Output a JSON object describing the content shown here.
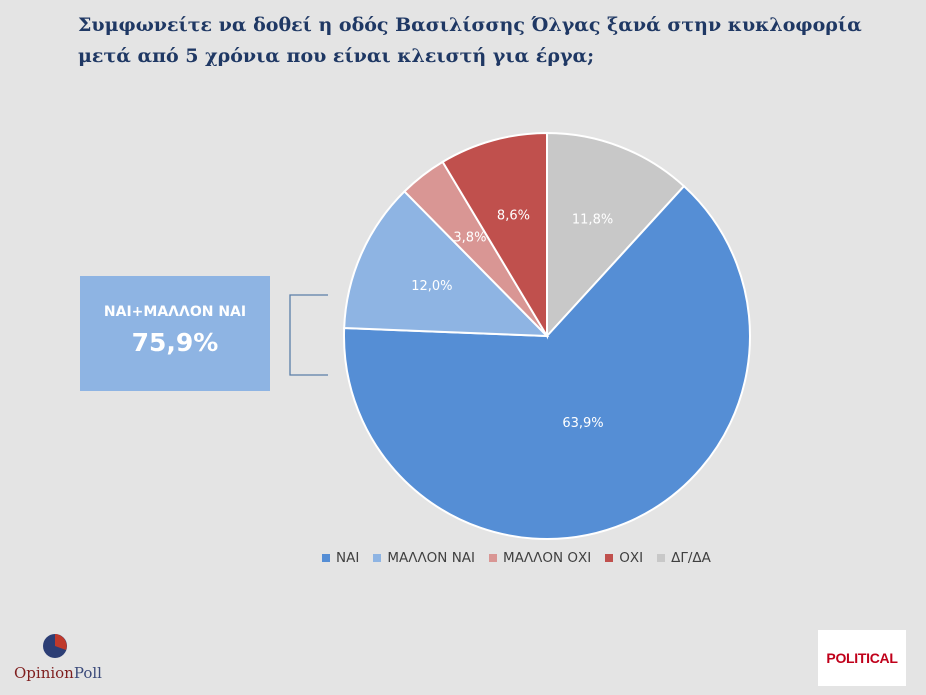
{
  "title": "Συμφωνείτε να δοθεί η οδός Βασιλίσσης Όλγας ξανά στην κυκλοφορία μετά από 5 χρόνια που είναι κλειστή για έργα;",
  "summary": {
    "label": "ΝΑΙ+ΜΑΛΛΟΝ ΝΑΙ",
    "value": "75,9%"
  },
  "chart_data": {
    "type": "pie",
    "title": "Συμφωνείτε να δοθεί η οδός Βασιλίσσης Όλγας ξανά στην κυκλοφορία μετά από 5 χρόνια που είναι κλειστή για έργα;",
    "legend_position": "bottom",
    "start_angle_deg": 0,
    "direction": "clockwise-from-top",
    "slices": [
      {
        "category": "ΔΓ/ΔΑ",
        "value": 11.8,
        "label": "11,8%",
        "color": "#c8c8c8"
      },
      {
        "category": "ΝΑΙ",
        "value": 63.9,
        "label": "63,9%",
        "color": "#558ed5"
      },
      {
        "category": "ΜΑΛΛΟΝ ΝΑΙ",
        "value": 12.0,
        "label": "12,0%",
        "color": "#8eb4e3"
      },
      {
        "category": "ΜΑΛΛΟΝ ΟΧΙ",
        "value": 3.8,
        "label": "3,8%",
        "color": "#d99694"
      },
      {
        "category": "ΟΧΙ",
        "value": 8.6,
        "label": "8,6%",
        "color": "#c0504d"
      }
    ],
    "legend": [
      {
        "label": "ΝΑΙ",
        "color": "#558ed5"
      },
      {
        "label": "ΜΑΛΛΟΝ ΝΑΙ",
        "color": "#8eb4e3"
      },
      {
        "label": "ΜΑΛΛΟΝ ΟΧΙ",
        "color": "#d99694"
      },
      {
        "label": "ΟΧΙ",
        "color": "#c0504d"
      },
      {
        "label": "ΔΓ/ΔΑ",
        "color": "#c8c8c8"
      }
    ]
  },
  "logos": {
    "left": {
      "name": "opinionpoll-logo",
      "text_a": "Opinion",
      "text_b": "Poll"
    },
    "right": {
      "name": "political-logo",
      "text": "POLITICAL"
    }
  }
}
